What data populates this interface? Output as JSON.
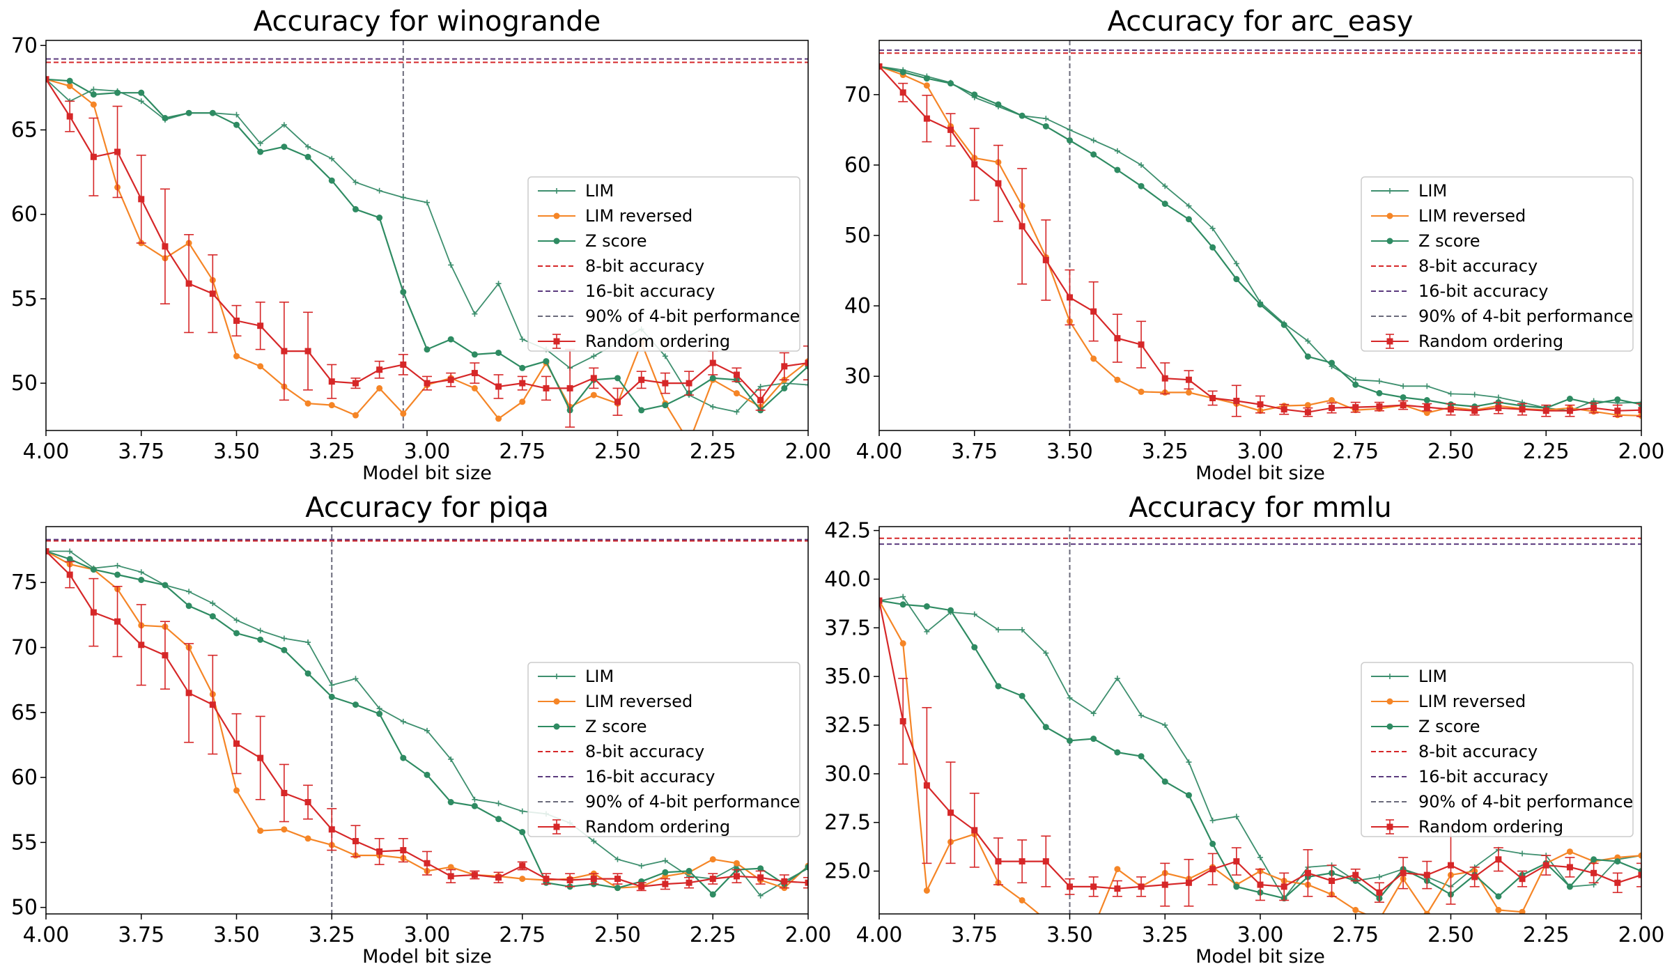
{
  "colors": {
    "lim": "#3d8f6e",
    "lim_reversed": "#f58526",
    "zscore": "#2e8b62",
    "bit8": "#d62728",
    "bit16": "#5b3a7e",
    "pct90": "#6a6a7a",
    "random": "#d62728"
  },
  "legend_labels": [
    "LIM",
    "LIM reversed",
    "Z score",
    "8-bit accuracy",
    "16-bit accuracy",
    "90% of 4-bit performance",
    "Random ordering"
  ],
  "chart_data": [
    {
      "type": "line",
      "title": "Accuracy for winogrande",
      "xlabel": "Model bit size",
      "ylabel": "",
      "xlim": [
        4.0,
        2.0
      ],
      "ylim": [
        47.2,
        70.3
      ],
      "x_ticks": [
        "4.00",
        "3.75",
        "3.50",
        "3.25",
        "3.00",
        "2.75",
        "2.50",
        "2.25",
        "2.00"
      ],
      "y_ticks": [
        "50",
        "55",
        "60",
        "65",
        "70"
      ],
      "legend_position": "center-right",
      "x": [
        4.0,
        3.9375,
        3.875,
        3.8125,
        3.75,
        3.6875,
        3.625,
        3.5625,
        3.5,
        3.4375,
        3.375,
        3.3125,
        3.25,
        3.1875,
        3.125,
        3.0625,
        3.0,
        2.9375,
        2.875,
        2.8125,
        2.75,
        2.6875,
        2.625,
        2.5625,
        2.5,
        2.4375,
        2.375,
        2.3125,
        2.25,
        2.1875,
        2.125,
        2.0625,
        2.0
      ],
      "series": [
        {
          "name": "LIM",
          "key": "lim",
          "values": [
            68.0,
            66.7,
            67.4,
            67.3,
            66.7,
            65.6,
            66.0,
            66.0,
            65.9,
            64.2,
            65.3,
            64.0,
            63.3,
            61.9,
            61.4,
            61.0,
            60.7,
            57.0,
            54.1,
            55.9,
            52.6,
            52.0,
            50.9,
            51.6,
            52.4,
            53.2,
            51.6,
            49.3,
            48.6,
            48.3,
            49.8,
            50.0,
            49.9
          ]
        },
        {
          "name": "LIM reversed",
          "key": "lim_reversed",
          "values": [
            68.0,
            67.6,
            66.5,
            61.6,
            58.3,
            57.4,
            58.3,
            56.1,
            51.6,
            51.0,
            49.8,
            48.8,
            48.7,
            48.1,
            49.7,
            48.2,
            49.9,
            50.3,
            49.7,
            47.9,
            48.9,
            51.2,
            48.6,
            49.3,
            48.8,
            52.4,
            48.8,
            46.5,
            50.2,
            49.4,
            48.6,
            50.2,
            51.3
          ]
        },
        {
          "name": "Z score",
          "key": "zscore",
          "values": [
            68.0,
            67.9,
            67.1,
            67.2,
            67.2,
            65.7,
            66.0,
            66.0,
            65.3,
            63.7,
            64.0,
            63.4,
            62.0,
            60.3,
            59.8,
            55.4,
            52.0,
            52.6,
            51.7,
            51.8,
            50.9,
            51.3,
            48.4,
            50.2,
            50.3,
            48.4,
            48.7,
            49.4,
            50.3,
            50.2,
            48.4,
            49.7,
            51.0
          ]
        },
        {
          "name": "Random ordering",
          "key": "random",
          "values": [
            68.0,
            65.8,
            63.4,
            63.7,
            60.9,
            58.1,
            55.9,
            55.3,
            53.7,
            53.4,
            51.9,
            51.9,
            50.1,
            50.0,
            50.8,
            51.1,
            50.0,
            50.2,
            50.6,
            49.8,
            50.0,
            49.7,
            49.7,
            50.3,
            48.9,
            50.2,
            50.0,
            50.0,
            51.2,
            50.5,
            49.0,
            51.0,
            51.2
          ],
          "errors": [
            0,
            0.9,
            2.3,
            2.7,
            2.6,
            3.4,
            2.9,
            2.3,
            0.9,
            1.4,
            2.9,
            2.3,
            1.0,
            0.3,
            0.5,
            0.6,
            0.4,
            0.4,
            0.6,
            0.7,
            0.4,
            0.7,
            2.3,
            0.6,
            0.8,
            0.5,
            0.6,
            0.7,
            0.7,
            0.4,
            0.6,
            0.8,
            1.0
          ]
        }
      ],
      "reference_lines": {
        "bit8": 69.0,
        "bit16": 69.2,
        "pct90_x": 3.0625
      }
    },
    {
      "type": "line",
      "title": "Accuracy for arc_easy",
      "xlabel": "Model bit size",
      "ylabel": "",
      "xlim": [
        4.0,
        2.0
      ],
      "ylim": [
        22.3,
        77.7
      ],
      "x_ticks": [
        "4.00",
        "3.75",
        "3.50",
        "3.25",
        "3.00",
        "2.75",
        "2.50",
        "2.25",
        "2.00"
      ],
      "y_ticks": [
        "30",
        "40",
        "50",
        "60",
        "70"
      ],
      "legend_position": "center-right",
      "x": [
        4.0,
        3.9375,
        3.875,
        3.8125,
        3.75,
        3.6875,
        3.625,
        3.5625,
        3.5,
        3.4375,
        3.375,
        3.3125,
        3.25,
        3.1875,
        3.125,
        3.0625,
        3.0,
        2.9375,
        2.875,
        2.8125,
        2.75,
        2.6875,
        2.625,
        2.5625,
        2.5,
        2.4375,
        2.375,
        2.3125,
        2.25,
        2.1875,
        2.125,
        2.0625,
        2.0
      ],
      "series": [
        {
          "name": "LIM",
          "key": "lim",
          "values": [
            74.0,
            73.5,
            72.6,
            71.7,
            69.6,
            68.3,
            67.0,
            66.6,
            65.0,
            63.5,
            62.0,
            60.0,
            57.0,
            54.2,
            51.0,
            46.0,
            40.5,
            37.5,
            35.0,
            31.4,
            29.5,
            29.3,
            28.6,
            28.6,
            27.5,
            27.4,
            27.0,
            26.3,
            25.5,
            25.1,
            26.5,
            26.2,
            26.3
          ]
        },
        {
          "name": "LIM reversed",
          "key": "lim_reversed",
          "values": [
            74.0,
            72.8,
            71.3,
            65.5,
            61.0,
            60.4,
            54.2,
            46.9,
            37.8,
            32.5,
            29.5,
            27.8,
            27.7,
            27.7,
            26.9,
            26.1,
            25.1,
            25.8,
            25.9,
            26.6,
            25.2,
            25.4,
            25.9,
            24.8,
            25.6,
            25.2,
            25.8,
            25.4,
            25.2,
            25.5,
            25.0,
            24.5,
            24.4
          ]
        },
        {
          "name": "Z score",
          "key": "zscore",
          "values": [
            74.0,
            73.2,
            72.3,
            71.6,
            70.0,
            68.6,
            67.0,
            65.5,
            63.5,
            61.5,
            59.3,
            57.0,
            54.5,
            52.3,
            48.3,
            43.8,
            40.2,
            37.3,
            32.8,
            31.9,
            28.8,
            27.6,
            27.0,
            26.6,
            26.0,
            25.7,
            26.3,
            25.8,
            25.5,
            26.8,
            26.1,
            26.7,
            26.0
          ]
        },
        {
          "name": "Random ordering",
          "key": "random",
          "values": [
            74.0,
            70.3,
            66.6,
            65.0,
            60.1,
            57.4,
            51.3,
            46.5,
            41.2,
            39.2,
            35.4,
            34.5,
            29.7,
            29.5,
            26.9,
            26.5,
            26.0,
            25.3,
            24.9,
            25.5,
            25.6,
            25.7,
            25.9,
            25.6,
            25.3,
            25.1,
            25.5,
            25.3,
            25.1,
            25.1,
            25.5,
            25.1,
            25.2
          ],
          "errors": [
            0,
            1.3,
            3.3,
            2.3,
            5.1,
            5.4,
            8.2,
            5.7,
            3.9,
            4.2,
            3.4,
            3.3,
            2.2,
            1.3,
            1.0,
            2.2,
            1.2,
            0.7,
            0.6,
            0.7,
            0.7,
            0.6,
            0.6,
            0.5,
            0.8,
            0.6,
            0.8,
            0.8,
            0.8,
            0.8,
            0.7,
            0.8,
            0.9
          ]
        }
      ],
      "reference_lines": {
        "bit8": 75.9,
        "bit16": 76.3,
        "pct90_x": 3.5
      }
    },
    {
      "type": "line",
      "title": "Accuracy for piqa",
      "xlabel": "Model bit size",
      "ylabel": "",
      "xlim": [
        4.0,
        2.0
      ],
      "ylim": [
        49.5,
        79.3
      ],
      "x_ticks": [
        "4.00",
        "3.75",
        "3.50",
        "3.25",
        "3.00",
        "2.75",
        "2.50",
        "2.25",
        "2.00"
      ],
      "y_ticks": [
        "50",
        "55",
        "60",
        "65",
        "70",
        "75"
      ],
      "legend_position": "center-right",
      "x": [
        4.0,
        3.9375,
        3.875,
        3.8125,
        3.75,
        3.6875,
        3.625,
        3.5625,
        3.5,
        3.4375,
        3.375,
        3.3125,
        3.25,
        3.1875,
        3.125,
        3.0625,
        3.0,
        2.9375,
        2.875,
        2.8125,
        2.75,
        2.6875,
        2.625,
        2.5625,
        2.5,
        2.4375,
        2.375,
        2.3125,
        2.25,
        2.1875,
        2.125,
        2.0625,
        2.0
      ],
      "series": [
        {
          "name": "LIM",
          "key": "lim",
          "values": [
            77.4,
            77.4,
            76.1,
            76.3,
            75.8,
            74.8,
            74.3,
            73.4,
            72.1,
            71.3,
            70.7,
            70.4,
            67.1,
            67.6,
            65.3,
            64.3,
            63.6,
            61.4,
            58.3,
            58.0,
            57.4,
            57.2,
            56.5,
            55.1,
            53.7,
            53.2,
            53.6,
            52.4,
            52.2,
            53.2,
            50.9,
            52.0,
            53.0
          ]
        },
        {
          "name": "LIM reversed",
          "key": "lim_reversed",
          "values": [
            77.4,
            76.4,
            76.0,
            74.5,
            71.7,
            71.6,
            70.0,
            66.4,
            59.0,
            55.9,
            56.0,
            55.3,
            54.8,
            54.0,
            54.0,
            53.8,
            52.8,
            53.1,
            52.5,
            52.4,
            52.2,
            52.1,
            52.2,
            52.6,
            51.5,
            51.6,
            52.4,
            52.7,
            53.7,
            53.4,
            52.1,
            51.5,
            53.2
          ]
        },
        {
          "name": "Z score",
          "key": "zscore",
          "values": [
            77.4,
            76.8,
            76.0,
            75.6,
            75.2,
            74.8,
            73.2,
            72.4,
            71.1,
            70.6,
            69.8,
            68.0,
            66.2,
            65.6,
            64.9,
            61.5,
            60.2,
            58.1,
            57.8,
            56.8,
            55.8,
            51.9,
            51.6,
            51.8,
            51.5,
            52.0,
            52.7,
            52.8,
            51.0,
            52.9,
            53.0,
            51.8,
            53.1
          ]
        },
        {
          "name": "Random ordering",
          "key": "random",
          "values": [
            77.4,
            75.6,
            72.7,
            72.0,
            70.2,
            69.4,
            66.5,
            65.6,
            62.6,
            61.5,
            58.8,
            58.1,
            56.0,
            55.1,
            54.3,
            54.4,
            53.4,
            52.4,
            52.5,
            52.3,
            53.2,
            52.2,
            52.1,
            52.2,
            52.2,
            51.6,
            51.8,
            51.9,
            52.2,
            52.4,
            52.3,
            52.0,
            51.9
          ],
          "errors": [
            0,
            1.0,
            2.6,
            2.7,
            3.1,
            2.6,
            3.8,
            3.8,
            2.3,
            3.2,
            2.2,
            1.3,
            1.6,
            1.2,
            1.0,
            0.9,
            0.9,
            0.5,
            0.3,
            0.4,
            0.3,
            0.4,
            0.5,
            0.4,
            0.4,
            0.3,
            0.4,
            0.4,
            0.4,
            0.5,
            0.5,
            0.5,
            0.4
          ]
        }
      ],
      "reference_lines": {
        "bit8": 78.2,
        "bit16": 78.3,
        "pct90_x": 3.25
      }
    },
    {
      "type": "line",
      "title": "Accuracy for mmlu",
      "xlabel": "Model bit size",
      "ylabel": "",
      "xlim": [
        4.0,
        2.0
      ],
      "ylim": [
        22.8,
        42.7
      ],
      "x_ticks": [
        "4.00",
        "3.75",
        "3.50",
        "3.25",
        "3.00",
        "2.75",
        "2.50",
        "2.25",
        "2.00"
      ],
      "y_ticks": [
        "25.0",
        "27.5",
        "30.0",
        "32.5",
        "35.0",
        "37.5",
        "40.0",
        "42.5"
      ],
      "legend_position": "center-right",
      "x": [
        4.0,
        3.9375,
        3.875,
        3.8125,
        3.75,
        3.6875,
        3.625,
        3.5625,
        3.5,
        3.4375,
        3.375,
        3.3125,
        3.25,
        3.1875,
        3.125,
        3.0625,
        3.0,
        2.9375,
        2.875,
        2.8125,
        2.75,
        2.6875,
        2.625,
        2.5625,
        2.5,
        2.4375,
        2.375,
        2.3125,
        2.25,
        2.1875,
        2.125,
        2.0625,
        2.0
      ],
      "series": [
        {
          "name": "LIM",
          "key": "lim",
          "values": [
            38.9,
            39.1,
            37.3,
            38.3,
            38.2,
            37.4,
            37.4,
            36.2,
            33.9,
            33.1,
            34.9,
            33.0,
            32.5,
            30.6,
            27.6,
            27.8,
            25.7,
            23.6,
            25.2,
            25.3,
            24.5,
            24.7,
            25.1,
            24.7,
            24.2,
            25.2,
            26.1,
            25.9,
            25.8,
            24.2,
            24.3,
            25.6,
            25.8
          ]
        },
        {
          "name": "LIM reversed",
          "key": "lim_reversed",
          "values": [
            38.9,
            36.7,
            24.0,
            26.5,
            26.9,
            24.4,
            23.5,
            22.5,
            21.5,
            22.1,
            25.1,
            24.2,
            24.9,
            24.6,
            25.2,
            24.3,
            25.0,
            24.5,
            24.3,
            23.8,
            23.0,
            22.5,
            24.6,
            22.8,
            24.8,
            25.0,
            23.0,
            22.9,
            25.4,
            26.0,
            25.5,
            25.7,
            25.8
          ]
        },
        {
          "name": "Z score",
          "key": "zscore",
          "values": [
            38.9,
            38.7,
            38.6,
            38.4,
            36.5,
            34.5,
            34.0,
            32.4,
            31.7,
            31.8,
            31.1,
            30.9,
            29.6,
            28.9,
            26.4,
            24.2,
            23.9,
            23.6,
            24.7,
            24.9,
            24.5,
            23.6,
            25.1,
            24.5,
            23.8,
            24.8,
            23.7,
            24.8,
            25.4,
            24.2,
            25.6,
            25.5,
            25.0
          ]
        },
        {
          "name": "Random ordering",
          "key": "random",
          "values": [
            38.9,
            32.7,
            29.4,
            28.0,
            27.1,
            25.5,
            25.5,
            25.5,
            24.2,
            24.2,
            24.1,
            24.2,
            24.3,
            24.4,
            25.1,
            25.5,
            24.3,
            24.2,
            24.9,
            24.5,
            24.8,
            23.9,
            24.9,
            24.8,
            25.3,
            24.7,
            25.6,
            24.6,
            25.3,
            25.2,
            24.9,
            24.4,
            24.8
          ],
          "errors": [
            0,
            2.2,
            4.0,
            2.6,
            1.9,
            1.2,
            1.1,
            1.3,
            0.4,
            0.5,
            0.4,
            0.5,
            1.1,
            1.2,
            0.8,
            0.7,
            0.8,
            0.7,
            1.2,
            0.8,
            0.3,
            0.5,
            0.8,
            0.7,
            2.0,
            0.5,
            0.6,
            0.4,
            0.5,
            0.5,
            0.5,
            0.5,
            0.6
          ]
        }
      ],
      "reference_lines": {
        "bit8": 42.1,
        "bit16": 41.8,
        "pct90_x": 3.5
      }
    }
  ]
}
